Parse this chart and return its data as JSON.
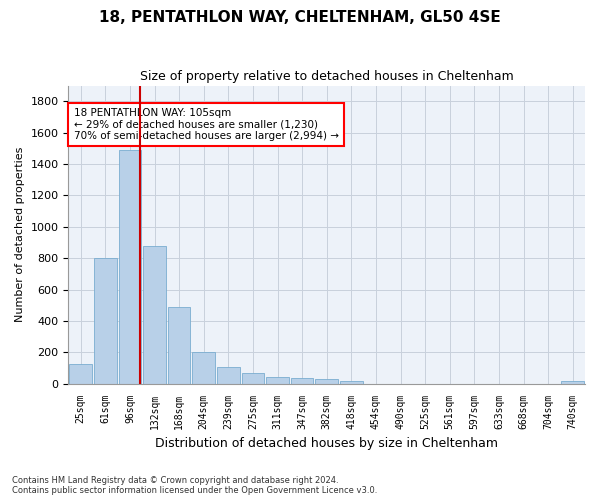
{
  "title1": "18, PENTATHLON WAY, CHELTENHAM, GL50 4SE",
  "title2": "Size of property relative to detached houses in Cheltenham",
  "xlabel": "Distribution of detached houses by size in Cheltenham",
  "ylabel": "Number of detached properties",
  "categories": [
    "25sqm",
    "61sqm",
    "96sqm",
    "132sqm",
    "168sqm",
    "204sqm",
    "239sqm",
    "275sqm",
    "311sqm",
    "347sqm",
    "382sqm",
    "418sqm",
    "454sqm",
    "490sqm",
    "525sqm",
    "561sqm",
    "597sqm",
    "633sqm",
    "668sqm",
    "704sqm",
    "740sqm"
  ],
  "values": [
    125,
    800,
    1490,
    880,
    490,
    205,
    105,
    65,
    40,
    35,
    30,
    20,
    0,
    0,
    0,
    0,
    0,
    0,
    0,
    0,
    20
  ],
  "bar_color": "#b8d0e8",
  "bar_edgecolor": "#7aadd0",
  "vline_bar_index": 2,
  "highlight_color": "#cc0000",
  "annotation_text": "18 PENTATHLON WAY: 105sqm\n← 29% of detached houses are smaller (1,230)\n70% of semi-detached houses are larger (2,994) →",
  "ylim": [
    0,
    1900
  ],
  "yticks": [
    0,
    200,
    400,
    600,
    800,
    1000,
    1200,
    1400,
    1600,
    1800
  ],
  "footnote": "Contains HM Land Registry data © Crown copyright and database right 2024.\nContains public sector information licensed under the Open Government Licence v3.0.",
  "bg_color": "#edf2f9",
  "grid_color": "#c8d0dc"
}
